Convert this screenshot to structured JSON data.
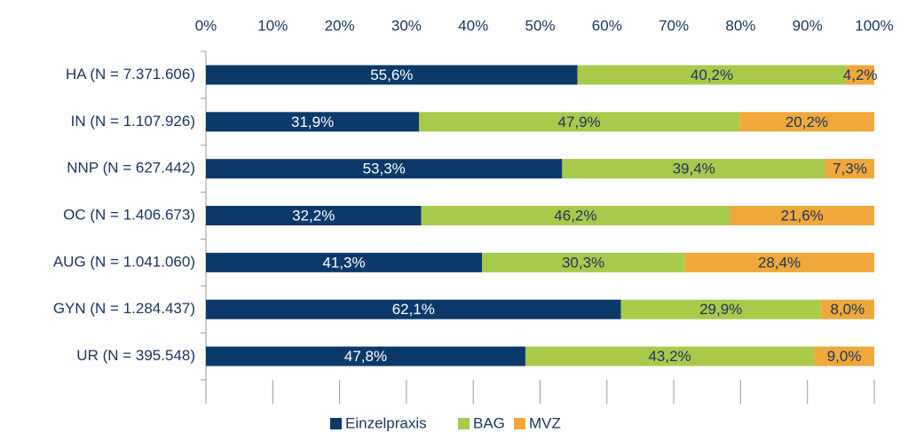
{
  "chart_data": {
    "type": "stacked_bar_horizontal",
    "categories": [
      "HA (N = 7.371.606)",
      "IN (N = 1.107.926)",
      "NNP (N = 627.442)",
      "OC (N = 1.406.673)",
      "AUG (N = 1.041.060)",
      "GYN (N = 1.284.437)",
      "UR (N = 395.548)"
    ],
    "series": [
      {
        "name": "Einzelpraxis",
        "color": "#0b3a6a",
        "label_color": "#ffffff",
        "values": [
          55.6,
          31.9,
          53.3,
          32.2,
          41.3,
          62.1,
          47.8
        ],
        "value_labels": [
          "55,6%",
          "31,9%",
          "53,3%",
          "32,2%",
          "41,3%",
          "62,1%",
          "47,8%"
        ]
      },
      {
        "name": "BAG",
        "color": "#a9c94b",
        "label_color": "#1b3560",
        "values": [
          40.2,
          47.9,
          39.4,
          46.2,
          30.3,
          29.9,
          43.2
        ],
        "value_labels": [
          "40,2%",
          "47,9%",
          "39,4%",
          "46,2%",
          "30,3%",
          "29,9%",
          "43,2%"
        ]
      },
      {
        "name": "MVZ",
        "color": "#f0a83a",
        "label_color": "#1b3560",
        "values": [
          4.2,
          20.2,
          7.3,
          21.6,
          28.4,
          8.0,
          9.0
        ],
        "value_labels": [
          "4,2%",
          "20,2%",
          "7,3%",
          "21,6%",
          "28,4%",
          "8,0%",
          "9,0%"
        ]
      }
    ],
    "xlim": [
      0,
      100
    ],
    "xticks": [
      {
        "value": 0,
        "label": "0%"
      },
      {
        "value": 10,
        "label": "10%"
      },
      {
        "value": 20,
        "label": "20%"
      },
      {
        "value": 30,
        "label": "30%"
      },
      {
        "value": 40,
        "label": "40%"
      },
      {
        "value": 50,
        "label": "50%"
      },
      {
        "value": 60,
        "label": "60%"
      },
      {
        "value": 70,
        "label": "70%"
      },
      {
        "value": 80,
        "label": "80%"
      },
      {
        "value": 90,
        "label": "90%"
      },
      {
        "value": 100,
        "label": "100%"
      }
    ],
    "legend": "bottom"
  }
}
